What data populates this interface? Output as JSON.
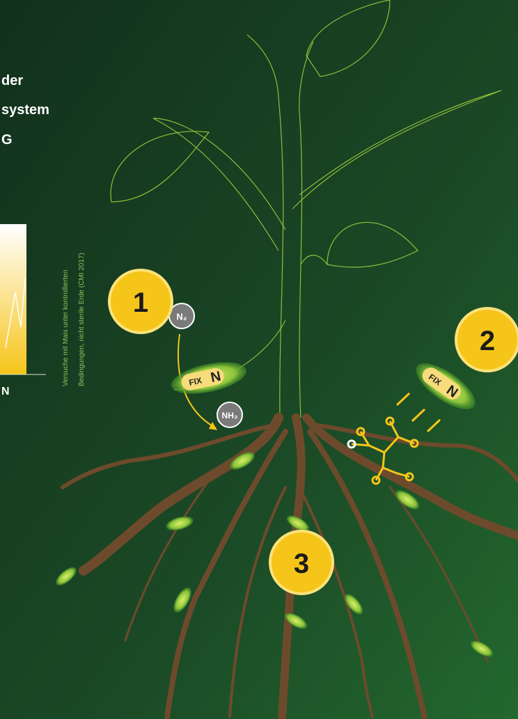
{
  "header": {
    "lines": [
      "der",
      "system",
      "G"
    ]
  },
  "chart_fragment": {
    "axis_label": "N"
  },
  "footnote": {
    "lines": [
      "Versuche mit Mais unter kontrollierten",
      "Bedingungen, nicht sterile Erde (CMI 2017)"
    ]
  },
  "badges": [
    "1",
    "2",
    "3"
  ],
  "molecules": {
    "n2": "N₂",
    "nh3": "NH₃"
  },
  "bacteria_logo": {
    "fix": "FIX",
    "n": "N"
  }
}
